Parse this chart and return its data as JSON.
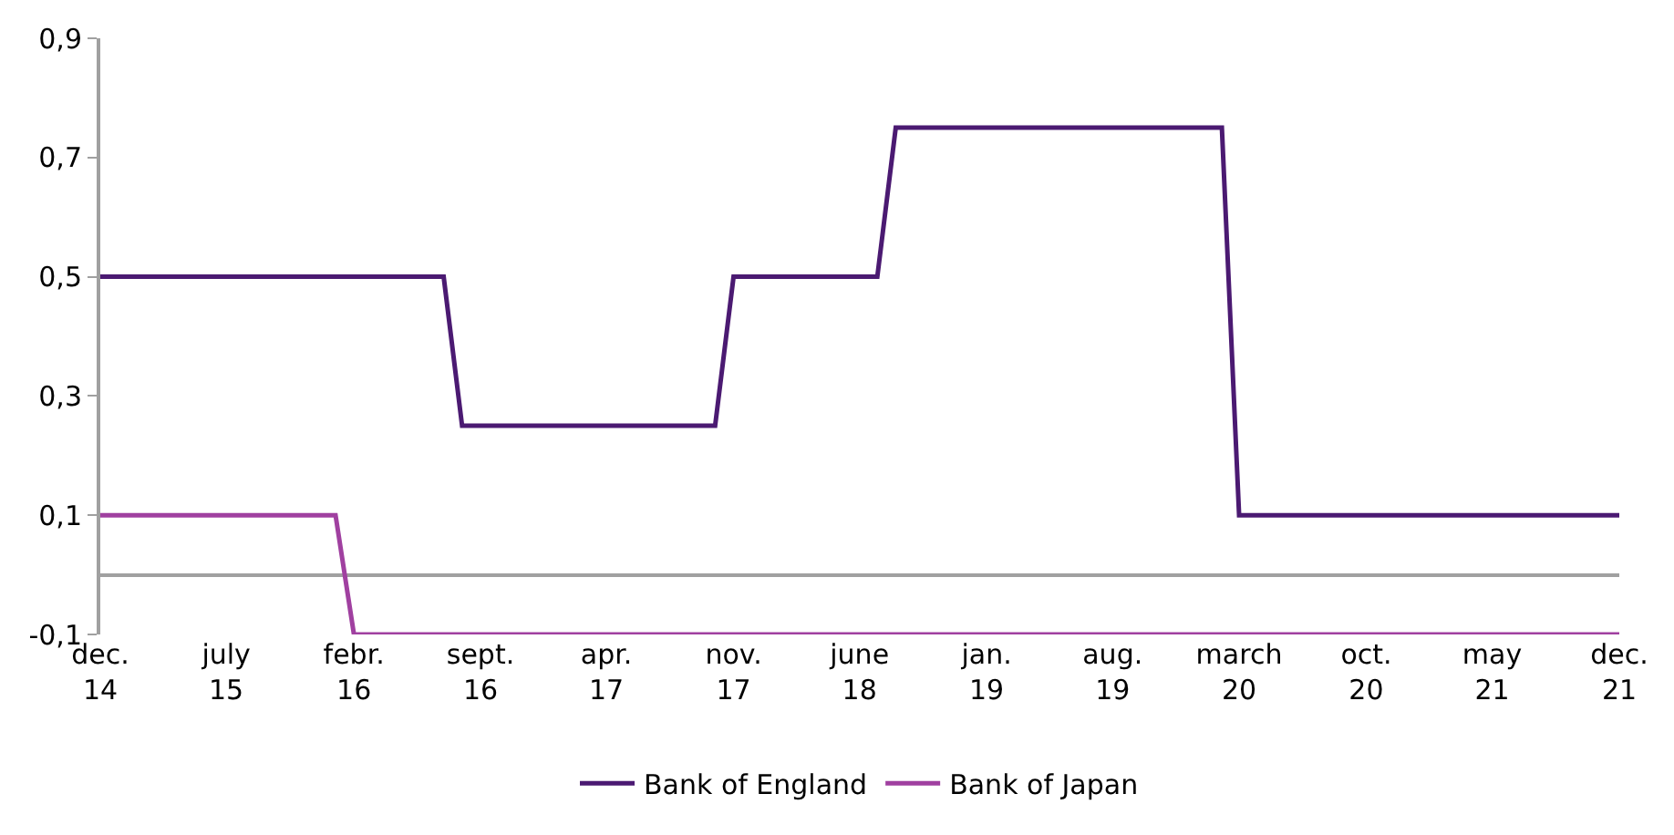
{
  "chart_data": {
    "type": "line",
    "xlim": [
      "2014-12",
      "2021-12"
    ],
    "xticks": [
      {
        "value": "2014-12",
        "label": "dec.\n14"
      },
      {
        "value": "2015-07",
        "label": "july\n15"
      },
      {
        "value": "2016-02",
        "label": "febr.\n16"
      },
      {
        "value": "2016-09",
        "label": "sept.\n16"
      },
      {
        "value": "2017-04",
        "label": "apr.\n17"
      },
      {
        "value": "2017-11",
        "label": "nov.\n17"
      },
      {
        "value": "2018-06",
        "label": "june\n18"
      },
      {
        "value": "2019-01",
        "label": "jan.\n19"
      },
      {
        "value": "2019-08",
        "label": "aug.\n19"
      },
      {
        "value": "2020-03",
        "label": "march\n20"
      },
      {
        "value": "2020-10",
        "label": "oct.\n20"
      },
      {
        "value": "2021-05",
        "label": "may\n21"
      },
      {
        "value": "2021-12",
        "label": "dec.\n21"
      }
    ],
    "ylim": [
      -0.1,
      0.9
    ],
    "yticks": [
      {
        "value": -0.1,
        "label": "-0,1"
      },
      {
        "value": 0.1,
        "label": "0,1"
      },
      {
        "value": 0.3,
        "label": "0,3"
      },
      {
        "value": 0.5,
        "label": "0,5"
      },
      {
        "value": 0.7,
        "label": "0,7"
      },
      {
        "value": 0.9,
        "label": "0,9"
      }
    ],
    "legend": "bottom",
    "marker": "none",
    "line_style": "solid",
    "series": [
      {
        "name": "Bank of England",
        "color": "#4b1a72",
        "x": [
          "2014-12",
          "2016-07",
          "2016-08",
          "2017-10",
          "2017-11",
          "2018-07",
          "2018-08",
          "2020-02",
          "2020-03",
          "2021-12"
        ],
        "values": [
          0.5,
          0.5,
          0.25,
          0.25,
          0.5,
          0.5,
          0.75,
          0.75,
          0.1,
          0.1
        ]
      },
      {
        "name": "Bank of Japan",
        "color": "#a040a0",
        "x": [
          "2014-12",
          "2016-01",
          "2016-02",
          "2021-12"
        ],
        "values": [
          0.1,
          0.1,
          -0.1,
          -0.1
        ]
      }
    ]
  }
}
